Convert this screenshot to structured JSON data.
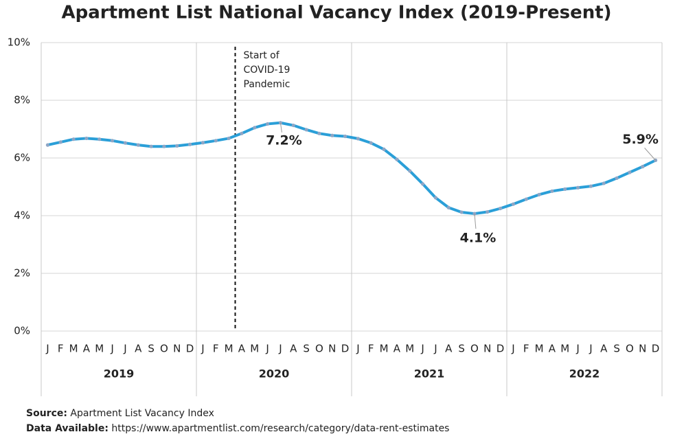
{
  "chart_data": {
    "type": "line",
    "title": "Apartment List National Vacancy Index (2019-Present)",
    "categories": [
      "J",
      "F",
      "M",
      "A",
      "M",
      "J",
      "J",
      "A",
      "S",
      "O",
      "N",
      "D",
      "J",
      "F",
      "M",
      "A",
      "M",
      "J",
      "J",
      "A",
      "S",
      "O",
      "N",
      "D",
      "J",
      "F",
      "M",
      "A",
      "M",
      "J",
      "J",
      "A",
      "S",
      "O",
      "N",
      "D",
      "J",
      "F",
      "M",
      "A",
      "M",
      "J",
      "J",
      "A",
      "S",
      "O",
      "N",
      "D"
    ],
    "years": [
      "2019",
      "2020",
      "2021",
      "2022"
    ],
    "series": [
      {
        "name": "Apartment List National Vacancy Index",
        "color": "#2a9fd8",
        "values": [
          6.45,
          6.55,
          6.65,
          6.68,
          6.65,
          6.6,
          6.52,
          6.45,
          6.4,
          6.4,
          6.42,
          6.47,
          6.53,
          6.6,
          6.68,
          6.85,
          7.05,
          7.18,
          7.22,
          7.13,
          6.98,
          6.85,
          6.78,
          6.75,
          6.67,
          6.52,
          6.3,
          5.95,
          5.55,
          5.1,
          4.62,
          4.28,
          4.12,
          4.07,
          4.13,
          4.25,
          4.4,
          4.57,
          4.73,
          4.85,
          4.92,
          4.97,
          5.02,
          5.12,
          5.3,
          5.5,
          5.7,
          5.92
        ],
        "value_labels": [
          null,
          null,
          null,
          null,
          null,
          null,
          null,
          null,
          null,
          null,
          null,
          null,
          null,
          null,
          null,
          null,
          null,
          null,
          "7.2%",
          null,
          null,
          null,
          null,
          null,
          null,
          null,
          null,
          null,
          null,
          null,
          null,
          null,
          null,
          "4.1%",
          null,
          null,
          null,
          null,
          null,
          null,
          null,
          null,
          null,
          null,
          null,
          null,
          null,
          "5.9%"
        ]
      }
    ],
    "ylim": [
      0,
      10
    ],
    "yticks": [
      {
        "value": 0,
        "label": "0%"
      },
      {
        "value": 2,
        "label": "2%"
      },
      {
        "value": 4,
        "label": "4%"
      },
      {
        "value": 6,
        "label": "6%"
      },
      {
        "value": 8,
        "label": "8%"
      },
      {
        "value": 10,
        "label": "10%"
      }
    ],
    "grid": true,
    "annotation": [
      "Start of",
      "COVID-19",
      "Pandemic"
    ],
    "source_label": "Source:",
    "source": "Apartment List Vacancy Index",
    "data_label": "Data Available:",
    "data_url": "https://www.apartmentlist.com/research/category/data-rent-estimates"
  }
}
